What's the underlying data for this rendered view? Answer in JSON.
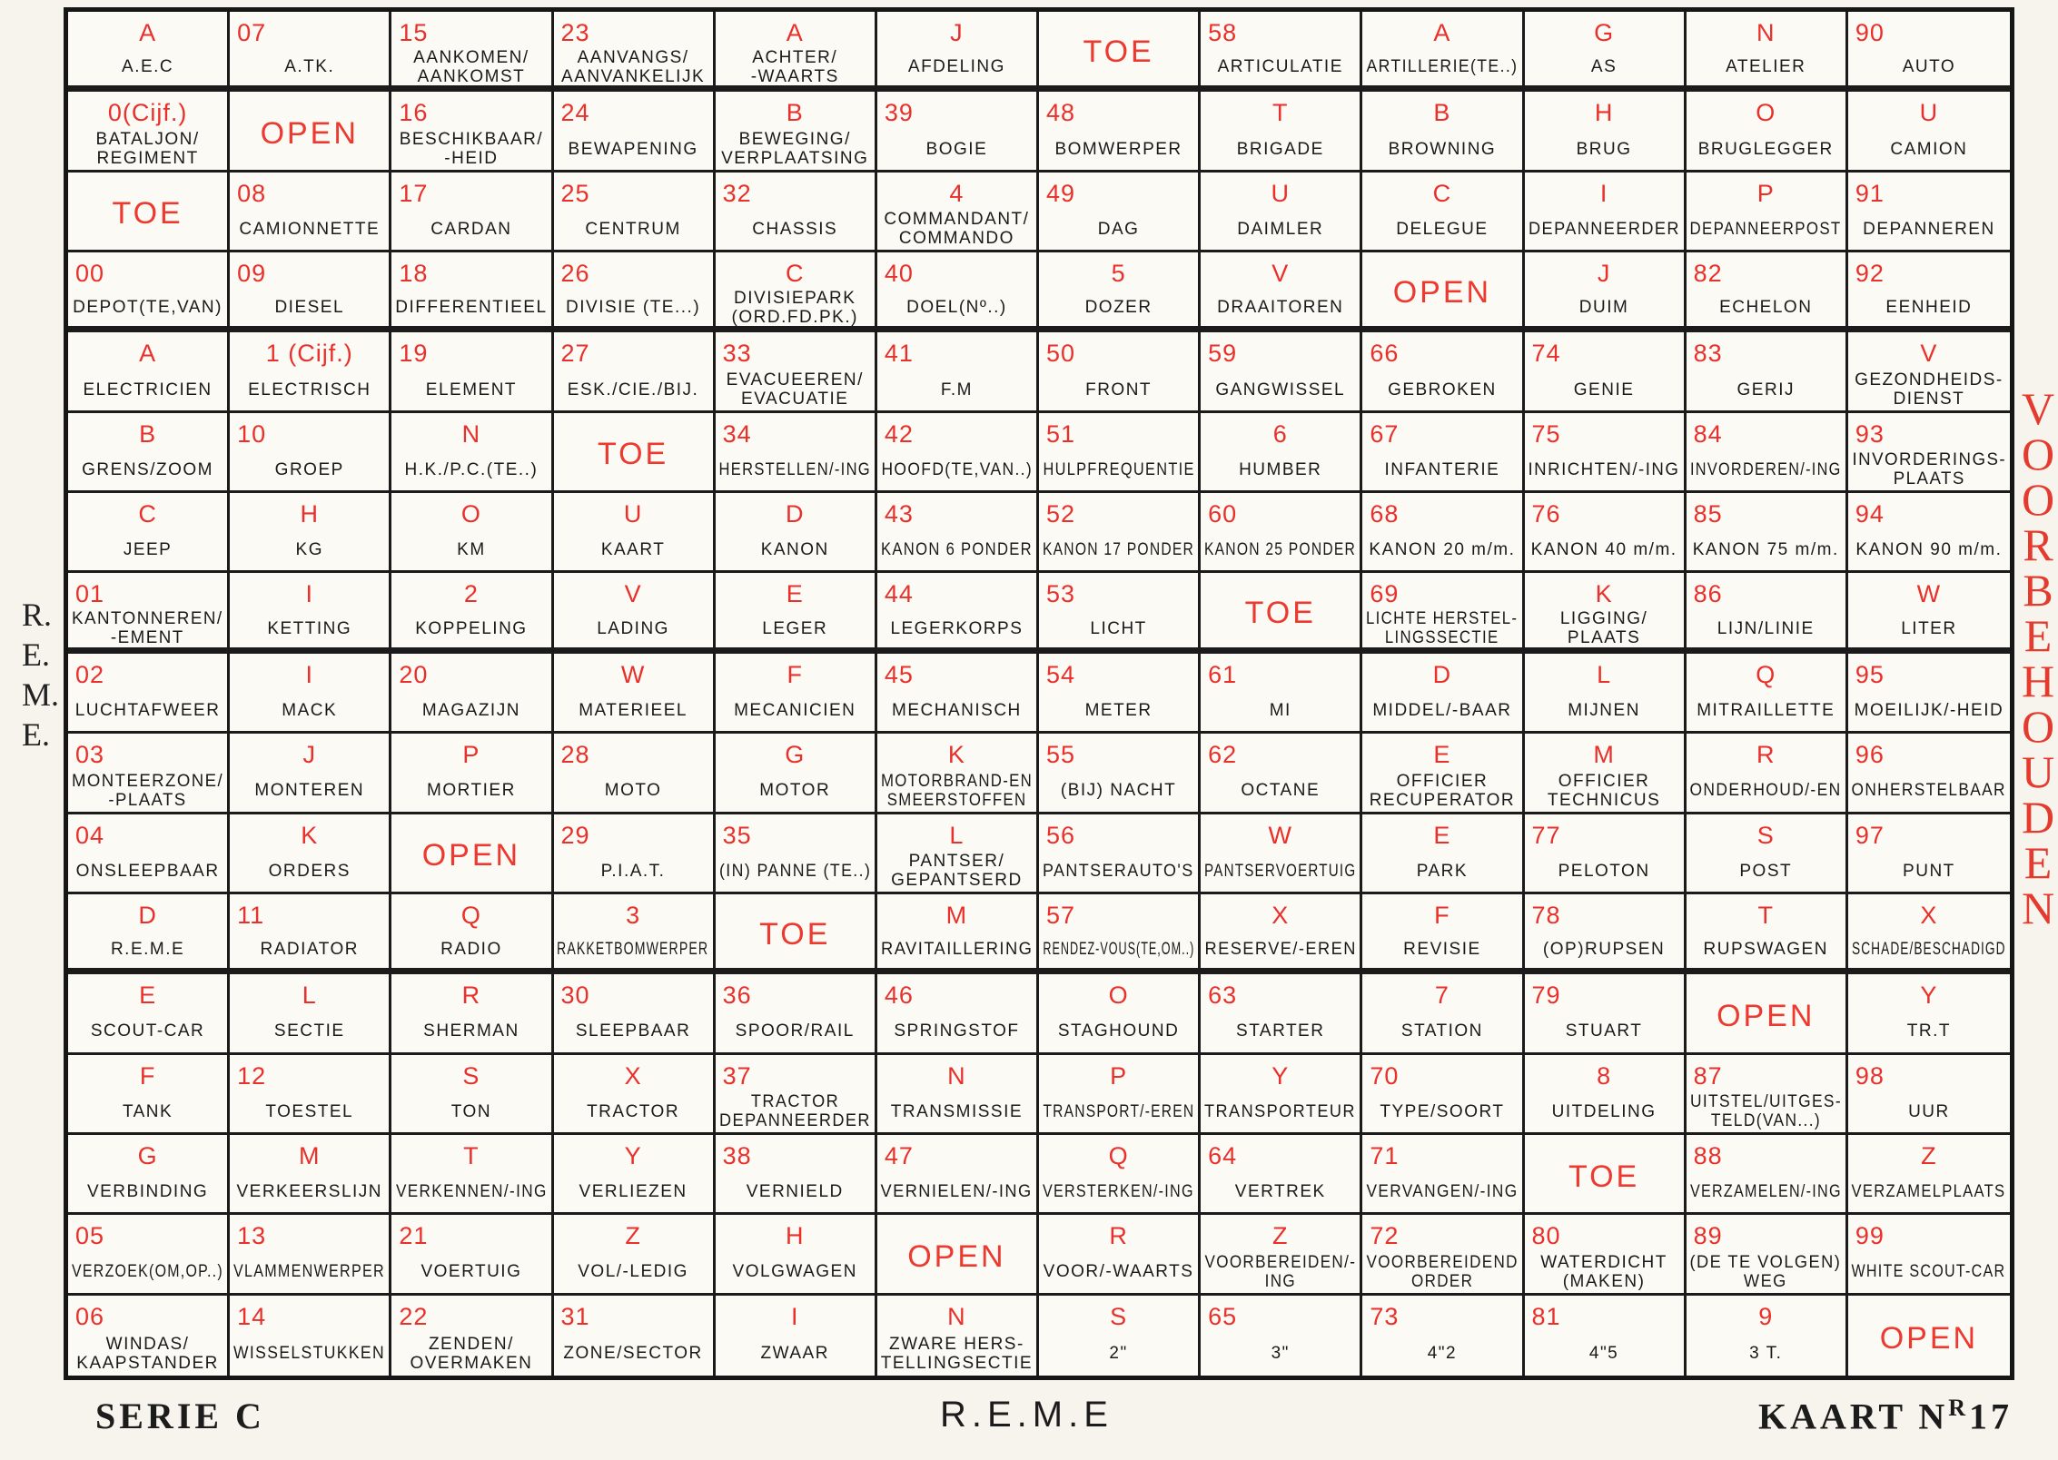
{
  "colors": {
    "code": "#e9302a",
    "grid": "#1b1b1b",
    "paper": "#f6f4ec"
  },
  "side_left": "R.\nE.\nM.\nE.",
  "side_right": "VOORBEHOUDEN",
  "footer": {
    "serie": "SERIE C",
    "center": "R.E.M.E",
    "kaart": "KAART N",
    "kaart_sup": "R",
    "kaart_num": "17"
  },
  "rows": [
    [
      [
        "A",
        "A.E.C"
      ],
      [
        "07",
        "A.TK."
      ],
      [
        "15",
        "AANKOMEN/\nAANKOMST"
      ],
      [
        "23",
        "AANVANGS/\nAANVANKELIJK"
      ],
      [
        "A",
        "ACHTER/\n-WAARTS"
      ],
      [
        "J",
        "AFDELING"
      ],
      [
        "",
        "TOE"
      ],
      [
        "58",
        "ARTICULATIE"
      ],
      [
        "A",
        "ARTILLERIE(TE..)"
      ],
      [
        "G",
        "AS"
      ],
      [
        "N",
        "ATELIER"
      ],
      [
        "90",
        "AUTO"
      ]
    ],
    [
      [
        "0(Cijf.)",
        "BATALJON/\nREGIMENT"
      ],
      [
        "",
        "OPEN"
      ],
      [
        "16",
        "BESCHIKBAAR/\n-HEID"
      ],
      [
        "24",
        "BEWAPENING"
      ],
      [
        "B",
        "BEWEGING/\nVERPLAATSING"
      ],
      [
        "39",
        "BOGIE"
      ],
      [
        "48",
        "BOMWERPER"
      ],
      [
        "T",
        "BRIGADE"
      ],
      [
        "B",
        "BROWNING"
      ],
      [
        "H",
        "BRUG"
      ],
      [
        "O",
        "BRUGLEGGER"
      ],
      [
        "U",
        "CAMION"
      ]
    ],
    [
      [
        "",
        "TOE"
      ],
      [
        "08",
        "CAMIONNETTE"
      ],
      [
        "17",
        "CARDAN"
      ],
      [
        "25",
        "CENTRUM"
      ],
      [
        "32",
        "CHASSIS"
      ],
      [
        "4",
        "COMMANDANT/\nCOMMANDO"
      ],
      [
        "49",
        "DAG"
      ],
      [
        "U",
        "DAIMLER"
      ],
      [
        "C",
        "DELEGUE"
      ],
      [
        "I",
        "DEPANNEERDER"
      ],
      [
        "P",
        "DEPANNEERPOST"
      ],
      [
        "91",
        "DEPANNEREN"
      ]
    ],
    [
      [
        "00",
        "DEPOT(TE,VAN)"
      ],
      [
        "09",
        "DIESEL"
      ],
      [
        "18",
        "DIFFERENTIEEL"
      ],
      [
        "26",
        "DIVISIE (TE...)"
      ],
      [
        "C",
        "DIVISIEPARK\n(ORD.FD.PK.)"
      ],
      [
        "40",
        "DOEL(Nº..)"
      ],
      [
        "5",
        "DOZER"
      ],
      [
        "V",
        "DRAAITOREN"
      ],
      [
        "",
        "OPEN"
      ],
      [
        "J",
        "DUIM"
      ],
      [
        "82",
        "ECHELON"
      ],
      [
        "92",
        "EENHEID"
      ]
    ],
    [
      [
        "A",
        "ELECTRICIEN"
      ],
      [
        "1 (Cijf.)",
        "ELECTRISCH"
      ],
      [
        "19",
        "ELEMENT"
      ],
      [
        "27",
        "ESK./CIE./BIJ."
      ],
      [
        "33",
        "EVACUEEREN/\nEVACUATIE"
      ],
      [
        "41",
        "F.M"
      ],
      [
        "50",
        "FRONT"
      ],
      [
        "59",
        "GANGWISSEL"
      ],
      [
        "66",
        "GEBROKEN"
      ],
      [
        "74",
        "GENIE"
      ],
      [
        "83",
        "GERIJ"
      ],
      [
        "V",
        "GEZONDHEIDS-\nDIENST"
      ]
    ],
    [
      [
        "B",
        "GRENS/ZOOM"
      ],
      [
        "10",
        "GROEP"
      ],
      [
        "N",
        "H.K./P.C.(TE..)"
      ],
      [
        "",
        "TOE"
      ],
      [
        "34",
        "HERSTELLEN/-ING"
      ],
      [
        "42",
        "HOOFD(TE,VAN..)"
      ],
      [
        "51",
        "HULPFREQUENTIE"
      ],
      [
        "6",
        "HUMBER"
      ],
      [
        "67",
        "INFANTERIE"
      ],
      [
        "75",
        "INRICHTEN/-ING"
      ],
      [
        "84",
        "INVORDEREN/-ING"
      ],
      [
        "93",
        "INVORDERINGS-\nPLAATS"
      ]
    ],
    [
      [
        "C",
        "JEEP"
      ],
      [
        "H",
        "KG"
      ],
      [
        "O",
        "KM"
      ],
      [
        "U",
        "KAART"
      ],
      [
        "D",
        "KANON"
      ],
      [
        "43",
        "KANON 6 PONDER"
      ],
      [
        "52",
        "KANON 17 PONDER"
      ],
      [
        "60",
        "KANON 25 PONDER"
      ],
      [
        "68",
        "KANON 20 m/m."
      ],
      [
        "76",
        "KANON 40 m/m."
      ],
      [
        "85",
        "KANON 75 m/m."
      ],
      [
        "94",
        "KANON 90 m/m."
      ]
    ],
    [
      [
        "01",
        "KANTONNEREN/\n-EMENT"
      ],
      [
        "I",
        "KETTING"
      ],
      [
        "2",
        "KOPPELING"
      ],
      [
        "V",
        "LADING"
      ],
      [
        "E",
        "LEGER"
      ],
      [
        "44",
        "LEGERKORPS"
      ],
      [
        "53",
        "LICHT"
      ],
      [
        "",
        "TOE"
      ],
      [
        "69",
        "LICHTE HERSTEL-\nLINGSSECTIE"
      ],
      [
        "K",
        "LIGGING/\nPLAATS"
      ],
      [
        "86",
        "LIJN/LINIE"
      ],
      [
        "W",
        "LITER"
      ]
    ],
    [
      [
        "02",
        "LUCHTAFWEER"
      ],
      [
        "I",
        "MACK"
      ],
      [
        "20",
        "MAGAZIJN"
      ],
      [
        "W",
        "MATERIEEL"
      ],
      [
        "F",
        "MECANICIEN"
      ],
      [
        "45",
        "MECHANISCH"
      ],
      [
        "54",
        "METER"
      ],
      [
        "61",
        "MI"
      ],
      [
        "D",
        "MIDDEL/-BAAR"
      ],
      [
        "L",
        "MIJNEN"
      ],
      [
        "Q",
        "MITRAILLETTE"
      ],
      [
        "95",
        "MOEILIJK/-HEID"
      ]
    ],
    [
      [
        "03",
        "MONTEERZONE/\n-PLAATS"
      ],
      [
        "J",
        "MONTEREN"
      ],
      [
        "P",
        "MORTIER"
      ],
      [
        "28",
        "MOTO"
      ],
      [
        "G",
        "MOTOR"
      ],
      [
        "K",
        "MOTORBRAND-EN\nSMEERSTOFFEN"
      ],
      [
        "55",
        "(BIJ) NACHT"
      ],
      [
        "62",
        "OCTANE"
      ],
      [
        "E",
        "OFFICIER\nRECUPERATOR"
      ],
      [
        "M",
        "OFFICIER\nTECHNICUS"
      ],
      [
        "R",
        "ONDERHOUD/-EN"
      ],
      [
        "96",
        "ONHERSTELBAAR"
      ]
    ],
    [
      [
        "04",
        "ONSLEEPBAAR"
      ],
      [
        "K",
        "ORDERS"
      ],
      [
        "",
        "OPEN"
      ],
      [
        "29",
        "P.I.A.T."
      ],
      [
        "35",
        "(IN) PANNE (TE..)"
      ],
      [
        "L",
        "PANTSER/\nGEPANTSERD"
      ],
      [
        "56",
        "PANTSERAUTO'S"
      ],
      [
        "W",
        "PANTSERVOERTUIG"
      ],
      [
        "E",
        "PARK"
      ],
      [
        "77",
        "PELOTON"
      ],
      [
        "S",
        "POST"
      ],
      [
        "97",
        "PUNT"
      ]
    ],
    [
      [
        "D",
        "R.E.M.E"
      ],
      [
        "11",
        "RADIATOR"
      ],
      [
        "Q",
        "RADIO"
      ],
      [
        "3",
        "RAKKETBOMWERPER"
      ],
      [
        "",
        "TOE"
      ],
      [
        "M",
        "RAVITAILLERING"
      ],
      [
        "57",
        "RENDEZ-VOUS(TE,OM..)"
      ],
      [
        "X",
        "RESERVE/-EREN"
      ],
      [
        "F",
        "REVISIE"
      ],
      [
        "78",
        "(OP)RUPSEN"
      ],
      [
        "T",
        "RUPSWAGEN"
      ],
      [
        "X",
        "SCHADE/BESCHADIGD"
      ]
    ],
    [
      [
        "E",
        "SCOUT-CAR"
      ],
      [
        "L",
        "SECTIE"
      ],
      [
        "R",
        "SHERMAN"
      ],
      [
        "30",
        "SLEEPBAAR"
      ],
      [
        "36",
        "SPOOR/RAIL"
      ],
      [
        "46",
        "SPRINGSTOF"
      ],
      [
        "O",
        "STAGHOUND"
      ],
      [
        "63",
        "STARTER"
      ],
      [
        "7",
        "STATION"
      ],
      [
        "79",
        "STUART"
      ],
      [
        "",
        "OPEN"
      ],
      [
        "Y",
        "TR.T"
      ]
    ],
    [
      [
        "F",
        "TANK"
      ],
      [
        "12",
        "TOESTEL"
      ],
      [
        "S",
        "TON"
      ],
      [
        "X",
        "TRACTOR"
      ],
      [
        "37",
        "TRACTOR\nDEPANNEERDER"
      ],
      [
        "N",
        "TRANSMISSIE"
      ],
      [
        "P",
        "TRANSPORT/-EREN"
      ],
      [
        "Y",
        "TRANSPORTEUR"
      ],
      [
        "70",
        "TYPE/SOORT"
      ],
      [
        "8",
        "UITDELING"
      ],
      [
        "87",
        "UITSTEL/UITGES-\nTELD(VAN...)"
      ],
      [
        "98",
        "UUR"
      ]
    ],
    [
      [
        "G",
        "VERBINDING"
      ],
      [
        "M",
        "VERKEERSLIJN"
      ],
      [
        "T",
        "VERKENNEN/-ING"
      ],
      [
        "Y",
        "VERLIEZEN"
      ],
      [
        "38",
        "VERNIELD"
      ],
      [
        "47",
        "VERNIELEN/-ING"
      ],
      [
        "Q",
        "VERSTERKEN/-ING"
      ],
      [
        "64",
        "VERTREK"
      ],
      [
        "71",
        "VERVANGEN/-ING"
      ],
      [
        "",
        "TOE"
      ],
      [
        "88",
        "VERZAMELEN/-ING"
      ],
      [
        "Z",
        "VERZAMELPLAATS"
      ]
    ],
    [
      [
        "05",
        "VERZOEK(OM,OP..)"
      ],
      [
        "13",
        "VLAMMENWERPER"
      ],
      [
        "21",
        "VOERTUIG"
      ],
      [
        "Z",
        "VOL/-LEDIG"
      ],
      [
        "H",
        "VOLGWAGEN"
      ],
      [
        "",
        "OPEN"
      ],
      [
        "R",
        "VOOR/-WAARTS"
      ],
      [
        "Z",
        "VOORBEREIDEN/-\nING"
      ],
      [
        "72",
        "VOORBEREIDEND\nORDER"
      ],
      [
        "80",
        "WATERDICHT\n(MAKEN)"
      ],
      [
        "89",
        "(DE TE VOLGEN)\nWEG"
      ],
      [
        "99",
        "WHITE SCOUT-CAR"
      ]
    ],
    [
      [
        "06",
        "WINDAS/\nKAAPSTANDER"
      ],
      [
        "14",
        "WISSELSTUKKEN"
      ],
      [
        "22",
        "ZENDEN/\nOVERMAKEN"
      ],
      [
        "31",
        "ZONE/SECTOR"
      ],
      [
        "I",
        "ZWAAR"
      ],
      [
        "N",
        "ZWARE HERS-\nTELLINGSECTIE"
      ],
      [
        "S",
        "2\""
      ],
      [
        "65",
        "3\""
      ],
      [
        "73",
        "4\"2"
      ],
      [
        "81",
        "4\"5"
      ],
      [
        "9",
        "3 T."
      ],
      [
        "",
        "OPEN"
      ]
    ]
  ]
}
